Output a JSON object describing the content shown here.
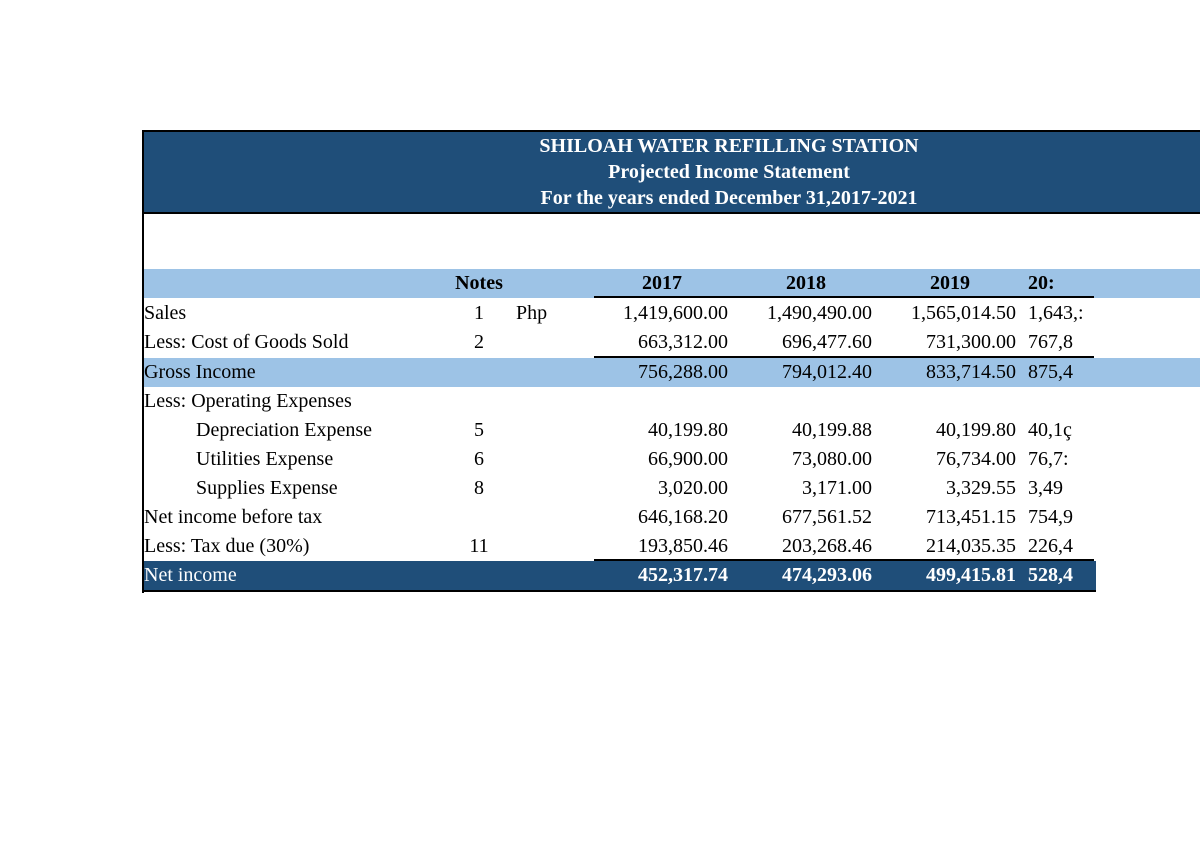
{
  "header": {
    "company": "SHILOAH WATER REFILLING STATION",
    "statement": "Projected Income Statement",
    "period": "For the years ended December 31,2017-2021"
  },
  "columns": {
    "notes": "Notes",
    "years": [
      "2017",
      "2018",
      "2019",
      "20:"
    ]
  },
  "rows": {
    "sales": {
      "label": "Sales",
      "note": "1",
      "currency": "Php",
      "values": [
        "1,419,600.00",
        "1,490,490.00",
        "1,565,014.50",
        "1,643,:"
      ]
    },
    "cogs": {
      "label": "Less: Cost of Goods Sold",
      "note": "2",
      "values": [
        "663,312.00",
        "696,477.60",
        "731,300.00",
        "767,8"
      ]
    },
    "gross": {
      "label": "Gross Income",
      "values": [
        "756,288.00",
        "794,012.40",
        "833,714.50",
        "875,4"
      ]
    },
    "opex": {
      "label": "Less: Operating Expenses"
    },
    "depreciation": {
      "label": "Depreciation Expense",
      "note": "5",
      "values": [
        "40,199.80",
        "40,199.88",
        "40,199.80",
        "40,1ç"
      ]
    },
    "utilities": {
      "label": "Utilities Expense",
      "note": "6",
      "values": [
        "66,900.00",
        "73,080.00",
        "76,734.00",
        "76,7:"
      ]
    },
    "supplies": {
      "label": "Supplies Expense",
      "note": "8",
      "values": [
        "3,020.00",
        "3,171.00",
        "3,329.55",
        "3,49"
      ]
    },
    "pretax": {
      "label": "Net income before tax",
      "values": [
        "646,168.20",
        "677,561.52",
        "713,451.15",
        "754,9"
      ]
    },
    "tax": {
      "label": "Less: Tax due (30%)",
      "note": "11",
      "values": [
        "193,850.46",
        "203,268.46",
        "214,035.35",
        "226,4"
      ]
    },
    "net": {
      "label": "Net income",
      "values": [
        "452,317.74",
        "474,293.06",
        "499,415.81",
        "528,4"
      ]
    }
  },
  "colors": {
    "dark_band": "#1f4e79",
    "light_band": "#9dc3e6"
  }
}
